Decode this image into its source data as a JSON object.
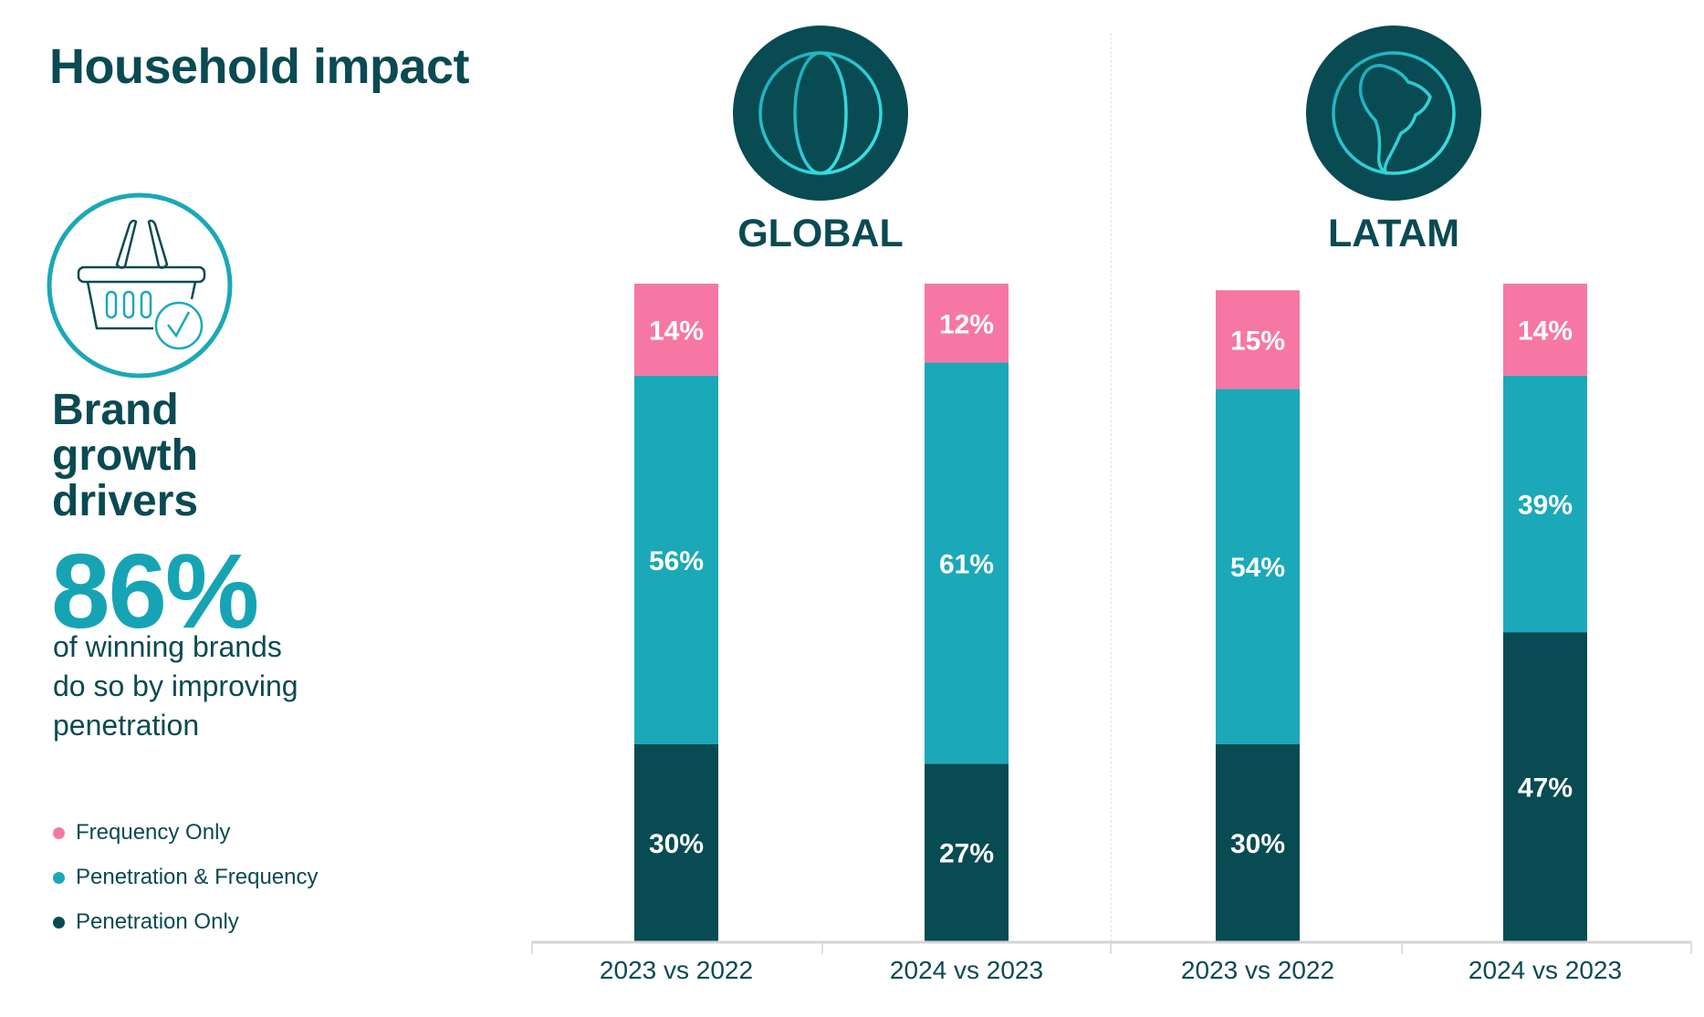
{
  "title": "Household impact",
  "left_panel": {
    "headline_lines": [
      "Brand",
      "growth",
      "drivers"
    ],
    "big_stat": "86%",
    "description_lines": [
      "of winning brands",
      "do so by improving",
      "penetration"
    ]
  },
  "colors": {
    "frequency_only": "#f677a3",
    "penetration_frequency": "#1ba8b8",
    "penetration_only": "#084b53"
  },
  "chart_data": {
    "type": "bar",
    "stacked": true,
    "groups": [
      {
        "name": "GLOBAL",
        "icon": "globe-icon",
        "categories": [
          "2023 vs 2022",
          "2024 vs 2023"
        ]
      },
      {
        "name": "LATAM",
        "icon": "south-america-icon",
        "categories": [
          "2023 vs 2022",
          "2024 vs 2023"
        ]
      }
    ],
    "categories": [
      "2023 vs 2022",
      "2024 vs 2023",
      "2023 vs 2022",
      "2024 vs 2023"
    ],
    "series": [
      {
        "name": "Penetration Only",
        "values": [
          30,
          27,
          30,
          47
        ]
      },
      {
        "name": "Penetration & Frequency",
        "values": [
          56,
          61,
          54,
          39
        ]
      },
      {
        "name": "Frequency Only",
        "values": [
          14,
          12,
          15,
          14
        ]
      }
    ],
    "value_labels": [
      [
        "30%",
        "27%",
        "30%",
        "47%"
      ],
      [
        "56%",
        "61%",
        "54%",
        "39%"
      ],
      [
        "14%",
        "12%",
        "15%",
        "14%"
      ]
    ],
    "ylim": [
      0,
      100
    ],
    "legend": [
      "Frequency Only",
      "Penetration & Frequency",
      "Penetration Only"
    ],
    "legend_position": "left"
  }
}
